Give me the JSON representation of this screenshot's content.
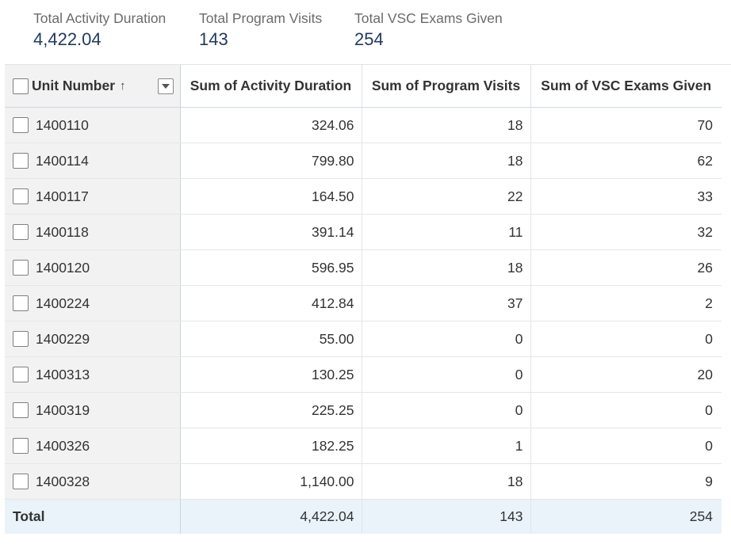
{
  "kpis": [
    {
      "label": "Total Activity Duration",
      "value": "4,422.04"
    },
    {
      "label": "Total Program Visits",
      "value": "143"
    },
    {
      "label": "Total VSC Exams Given",
      "value": "254"
    }
  ],
  "table": {
    "columns": {
      "unit": "Unit Number",
      "duration": "Sum of Activity Duration",
      "visits": "Sum of Program Visits",
      "exams": "Sum of VSC Exams Given"
    },
    "sort_indicator": "↑",
    "rows": [
      {
        "unit": "1400110",
        "duration": "324.06",
        "visits": "18",
        "exams": "70"
      },
      {
        "unit": "1400114",
        "duration": "799.80",
        "visits": "18",
        "exams": "62"
      },
      {
        "unit": "1400117",
        "duration": "164.50",
        "visits": "22",
        "exams": "33"
      },
      {
        "unit": "1400118",
        "duration": "391.14",
        "visits": "11",
        "exams": "32"
      },
      {
        "unit": "1400120",
        "duration": "596.95",
        "visits": "18",
        "exams": "26"
      },
      {
        "unit": "1400224",
        "duration": "412.84",
        "visits": "37",
        "exams": "2"
      },
      {
        "unit": "1400229",
        "duration": "55.00",
        "visits": "0",
        "exams": "0"
      },
      {
        "unit": "1400313",
        "duration": "130.25",
        "visits": "0",
        "exams": "20"
      },
      {
        "unit": "1400319",
        "duration": "225.25",
        "visits": "0",
        "exams": "0"
      },
      {
        "unit": "1400326",
        "duration": "182.25",
        "visits": "1",
        "exams": "0"
      },
      {
        "unit": "1400328",
        "duration": "1,140.00",
        "visits": "18",
        "exams": "9"
      }
    ],
    "total": {
      "label": "Total",
      "duration": "4,422.04",
      "visits": "143",
      "exams": "254"
    }
  }
}
